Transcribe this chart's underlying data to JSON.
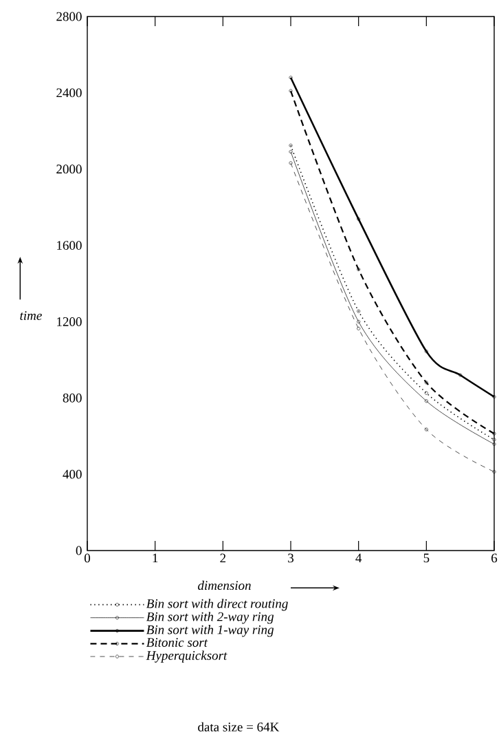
{
  "chart_data": {
    "type": "line",
    "xlabel": "dimension",
    "ylabel": "time",
    "xlim": [
      0,
      6
    ],
    "xticks": [
      0,
      1,
      2,
      3,
      4,
      5,
      6
    ],
    "ylim": [
      0,
      2800
    ],
    "yticks": [
      0,
      400,
      800,
      1200,
      1600,
      2000,
      2400,
      2800
    ],
    "legend": "bottom",
    "grid": false,
    "marker": "circle",
    "series": [
      {
        "name": "Bin sort with direct routing",
        "color": "#000000",
        "line_style": "dotted",
        "x": [
          3,
          4,
          5,
          6
        ],
        "values": [
          2124,
          1255,
          826,
          581
        ]
      },
      {
        "name": "Bin sort with 2-way ring",
        "color": "#000000",
        "line_style": "solid",
        "x": [
          3,
          4,
          5,
          6
        ],
        "values": [
          2091,
          1200,
          784,
          558
        ]
      },
      {
        "name": "Bin sort with 1-way ring",
        "color": "#000000",
        "line_style": "solid",
        "x": [
          3,
          4,
          5,
          5.5,
          6
        ],
        "values": [
          2480,
          1738,
          1044,
          920,
          806
        ]
      },
      {
        "name": "Bitonic sort",
        "color": "#000000",
        "line_style": "dashed",
        "x": [
          3,
          4,
          5,
          6
        ],
        "values": [
          2410,
          1474,
          881,
          613
        ]
      },
      {
        "name": "Hyperquicksort",
        "color": "#000000",
        "line_style": "dashed",
        "x": [
          3,
          4,
          5,
          6
        ],
        "values": [
          2032,
          1164,
          635,
          413
        ]
      }
    ],
    "annotations": [
      "data size = 64K"
    ]
  }
}
